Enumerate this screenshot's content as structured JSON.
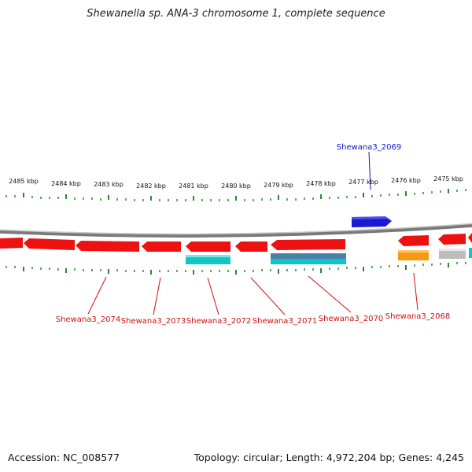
{
  "title": "Shewanella sp. ANA-3 chromosome 1, complete sequence",
  "footer": {
    "accession": "Accession: NC_008577",
    "summary": "Topology: circular; Length: 4,972,204 bp; Genes: 4,245"
  },
  "ruler_labels": [
    "2485 kbp",
    "2484 kbp",
    "2483 kbp",
    "2482 kbp",
    "2481 kbp",
    "2480 kbp",
    "2479 kbp",
    "2478 kbp",
    "2477 kbp",
    "2476 kbp",
    "2475 kbp"
  ],
  "gene_labels": {
    "top": [
      "Shewana3_2069"
    ],
    "bottom": [
      "Shewana3_2074",
      "Shewana3_2073",
      "Shewana3_2072",
      "Shewana3_2071",
      "Shewana3_2070",
      "Shewana3_2068"
    ]
  },
  "colors": {
    "gene_red": "#ee1111",
    "gene_blue": "#1a1ad0",
    "cds_cyan": "#13c6c6",
    "cds_orange": "#f59a12",
    "cds_gray": "#bdbdbd",
    "tick_green": "#2b8a2b",
    "label_red": "#cc1111",
    "label_blue": "#1111cc"
  }
}
